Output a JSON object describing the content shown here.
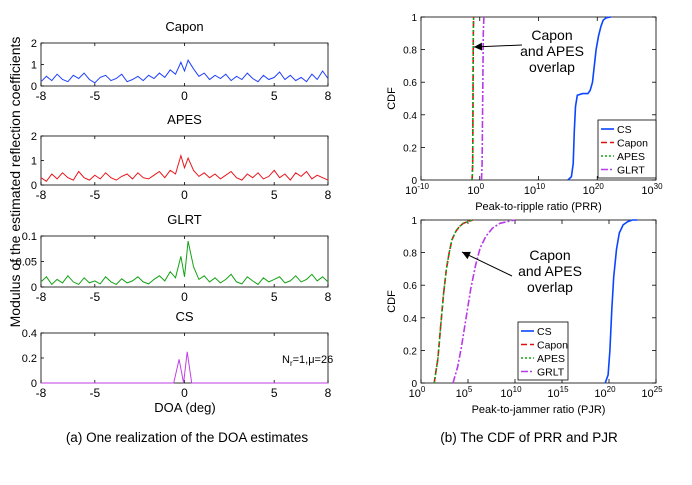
{
  "captions": {
    "left": "(a) One realization of  the DOA estimates",
    "right": "(b) The CDF of PRR and PJR"
  },
  "left_panel": {
    "shared_ylabel": "Modulus of the estimated reflection coefficients",
    "shared_xlabel": "DOA (deg)"
  },
  "colors": {
    "capon_blue": "#1f3fff",
    "apes_red": "#e8161b",
    "glrt_green": "#13a313",
    "cs_magenta": "#c13ee6",
    "cdf_cs": "#0a45ff",
    "cdf_capon": "#e01010",
    "cdf_apes": "#16a016",
    "cdf_glrt": "#b83ae8"
  },
  "chart_data": [
    {
      "type": "line",
      "title": "Capon",
      "xlim": [
        -8,
        8
      ],
      "ylim": [
        0,
        2
      ],
      "xticks": [
        -8,
        -5,
        0,
        5,
        8
      ],
      "yticks": [
        0,
        1,
        2
      ],
      "series": [
        {
          "name": "Capon",
          "color": "#1f3fff",
          "x": [
            -8,
            -7.7,
            -7.4,
            -7.1,
            -6.8,
            -6.5,
            -6.2,
            -5.9,
            -5.6,
            -5.3,
            -5,
            -4.7,
            -4.4,
            -4.1,
            -3.8,
            -3.5,
            -3.2,
            -2.9,
            -2.6,
            -2.3,
            -2,
            -1.7,
            -1.4,
            -1.1,
            -0.8,
            -0.5,
            -0.2,
            0,
            0.2,
            0.5,
            0.8,
            1.1,
            1.4,
            1.7,
            2,
            2.3,
            2.6,
            2.9,
            3.2,
            3.5,
            3.8,
            4.1,
            4.4,
            4.7,
            5,
            5.3,
            5.6,
            5.9,
            6.2,
            6.5,
            6.8,
            7.1,
            7.4,
            7.7,
            8
          ],
          "y": [
            0.2,
            0.45,
            0.25,
            0.55,
            0.3,
            0.2,
            0.5,
            0.35,
            0.6,
            0.3,
            0.15,
            0.4,
            0.5,
            0.25,
            0.35,
            0.55,
            0.2,
            0.3,
            0.45,
            0.25,
            0.5,
            0.35,
            0.6,
            0.4,
            0.75,
            0.55,
            1.1,
            0.7,
            1.2,
            0.8,
            0.45,
            0.6,
            0.3,
            0.5,
            0.35,
            0.55,
            0.25,
            0.45,
            0.3,
            0.6,
            0.35,
            0.2,
            0.5,
            0.3,
            0.4,
            0.65,
            0.3,
            0.5,
            0.25,
            0.4,
            0.2,
            0.55,
            0.3,
            0.7,
            0.35
          ]
        }
      ]
    },
    {
      "type": "line",
      "title": "APES",
      "xlim": [
        -8,
        8
      ],
      "ylim": [
        0,
        2
      ],
      "xticks": [
        -8,
        -5,
        0,
        5,
        8
      ],
      "yticks": [
        0,
        1,
        2
      ],
      "series": [
        {
          "name": "APES",
          "color": "#e8161b",
          "x": [
            -8,
            -7.7,
            -7.4,
            -7.1,
            -6.8,
            -6.5,
            -6.2,
            -5.9,
            -5.6,
            -5.3,
            -5,
            -4.7,
            -4.4,
            -4.1,
            -3.8,
            -3.5,
            -3.2,
            -2.9,
            -2.6,
            -2.3,
            -2,
            -1.7,
            -1.4,
            -1.1,
            -0.8,
            -0.5,
            -0.2,
            0,
            0.2,
            0.5,
            0.8,
            1.1,
            1.4,
            1.7,
            2,
            2.3,
            2.6,
            2.9,
            3.2,
            3.5,
            3.8,
            4.1,
            4.4,
            4.7,
            5,
            5.3,
            5.6,
            5.9,
            6.2,
            6.5,
            6.8,
            7.1,
            7.4,
            7.7,
            8
          ],
          "y": [
            0.3,
            0.15,
            0.45,
            0.25,
            0.5,
            0.3,
            0.2,
            0.55,
            0.3,
            0.2,
            0.4,
            0.25,
            0.5,
            0.3,
            0.2,
            0.35,
            0.45,
            0.25,
            0.5,
            0.3,
            0.25,
            0.4,
            0.55,
            0.3,
            0.6,
            0.45,
            1.2,
            0.7,
            1.1,
            0.6,
            0.35,
            0.5,
            0.3,
            0.45,
            0.25,
            0.4,
            0.55,
            0.3,
            0.2,
            0.45,
            0.3,
            0.5,
            0.25,
            0.35,
            0.6,
            0.3,
            0.45,
            0.2,
            0.5,
            0.35,
            0.55,
            0.25,
            0.4,
            0.3,
            0.2
          ]
        }
      ]
    },
    {
      "type": "line",
      "title": "GLRT",
      "xlim": [
        -8,
        8
      ],
      "ylim": [
        0,
        0.1
      ],
      "xticks": [
        -8,
        -5,
        0,
        5,
        8
      ],
      "yticks": [
        0,
        0.05,
        0.1
      ],
      "series": [
        {
          "name": "GLRT",
          "color": "#13a313",
          "x": [
            -8,
            -7.7,
            -7.4,
            -7.1,
            -6.8,
            -6.5,
            -6.2,
            -5.9,
            -5.6,
            -5.3,
            -5,
            -4.7,
            -4.4,
            -4.1,
            -3.8,
            -3.5,
            -3.2,
            -2.9,
            -2.6,
            -2.3,
            -2,
            -1.7,
            -1.4,
            -1.1,
            -0.8,
            -0.5,
            -0.2,
            0,
            0.2,
            0.5,
            0.8,
            1.1,
            1.4,
            1.7,
            2,
            2.3,
            2.6,
            2.9,
            3.2,
            3.5,
            3.8,
            4.1,
            4.4,
            4.7,
            5,
            5.3,
            5.6,
            5.9,
            6.2,
            6.5,
            6.8,
            7.1,
            7.4,
            7.7,
            8
          ],
          "y": [
            0.01,
            0.02,
            0.005,
            0.015,
            0.008,
            0.022,
            0.01,
            0.005,
            0.018,
            0.008,
            0.012,
            0.006,
            0.02,
            0.01,
            0.005,
            0.016,
            0.008,
            0.012,
            0.02,
            0.01,
            0.006,
            0.015,
            0.022,
            0.012,
            0.03,
            0.018,
            0.06,
            0.02,
            0.09,
            0.04,
            0.015,
            0.022,
            0.01,
            0.018,
            0.008,
            0.015,
            0.025,
            0.01,
            0.006,
            0.02,
            0.012,
            0.005,
            0.018,
            0.01,
            0.015,
            0.02,
            0.008,
            0.012,
            0.022,
            0.01,
            0.015,
            0.025,
            0.012,
            0.02,
            0.01
          ]
        }
      ]
    },
    {
      "type": "line",
      "title": "CS",
      "annotation": "N",
      "annotation_sub": "r",
      "annotation_rest": "=1,μ=26",
      "xlim": [
        -8,
        8
      ],
      "ylim": [
        0,
        0.4
      ],
      "xticks": [
        -8,
        -5,
        0,
        5,
        8
      ],
      "yticks": [
        0,
        0.2,
        0.4
      ],
      "series": [
        {
          "name": "CS",
          "color": "#c13ee6",
          "x": [
            -8,
            -0.6,
            -0.3,
            -0.05,
            0.15,
            0.4,
            0.6,
            8
          ],
          "y": [
            0,
            0,
            0.19,
            0,
            0.25,
            0,
            0,
            0
          ]
        }
      ]
    },
    {
      "type": "line",
      "subtype": "cdf",
      "xscale": "log",
      "xlim_exp": [
        -10,
        30
      ],
      "ylim": [
        0,
        1
      ],
      "xticks_exp": [
        -10,
        0,
        10,
        20,
        30
      ],
      "yticks": [
        0,
        0.2,
        0.4,
        0.6,
        0.8,
        1
      ],
      "xlabel": "Peak-to-ripple ratio (PRR)",
      "ylabel": "CDF",
      "legend": "bottom-right",
      "annotation": "Capon\nand APES\noverlap",
      "series": [
        {
          "name": "CS",
          "color": "#0a45ff",
          "dash": "",
          "x": [
            15,
            15.6,
            15.9,
            16.1,
            16.3,
            16.6,
            17.5,
            18.4,
            18.8,
            19.2,
            19.5,
            19.8,
            20.2,
            20.6,
            21,
            21.5,
            22.3
          ],
          "y": [
            0,
            0.02,
            0.1,
            0.3,
            0.45,
            0.52,
            0.53,
            0.53,
            0.55,
            0.6,
            0.7,
            0.8,
            0.88,
            0.94,
            0.98,
            0.995,
            1
          ]
        },
        {
          "name": "Capon",
          "color": "#e01010",
          "dash": "6,3",
          "x": [
            -1.3,
            -1.2,
            -1.15,
            -1.1,
            -1.05
          ],
          "y": [
            0,
            0.1,
            0.5,
            0.9,
            1
          ]
        },
        {
          "name": "APES",
          "color": "#16a016",
          "dash": "2,2",
          "x": [
            -1.3,
            -1.2,
            -1.15,
            -1.1,
            -1.05
          ],
          "y": [
            0,
            0.1,
            0.5,
            0.9,
            1
          ]
        },
        {
          "name": "GLRT",
          "color": "#b83ae8",
          "dash": "7,2,2,2",
          "x": [
            0.3,
            0.4,
            0.5,
            0.6,
            0.7
          ],
          "y": [
            0,
            0.1,
            0.5,
            0.9,
            1
          ]
        }
      ]
    },
    {
      "type": "line",
      "subtype": "cdf",
      "xscale": "log",
      "xlim_exp": [
        0,
        25
      ],
      "ylim": [
        0,
        1
      ],
      "xticks_exp": [
        0,
        5,
        10,
        15,
        20,
        25
      ],
      "yticks": [
        0,
        0.2,
        0.4,
        0.6,
        0.8,
        1
      ],
      "xlabel": "Peak-to-jammer ratio (PJR)",
      "ylabel": "CDF",
      "legend": "bottom-left",
      "annotation": "Capon\nand APES\noverlap",
      "series": [
        {
          "name": "CS",
          "color": "#0a45ff",
          "dash": "",
          "x": [
            19.6,
            19.9,
            20.1,
            20.3,
            20.5,
            20.8,
            21.1,
            21.5,
            22,
            22.5,
            23
          ],
          "y": [
            0,
            0.05,
            0.2,
            0.45,
            0.65,
            0.82,
            0.92,
            0.97,
            0.99,
            1,
            1
          ]
        },
        {
          "name": "Capon",
          "color": "#e01010",
          "dash": "6,3",
          "x": [
            1.4,
            1.8,
            2.1,
            2.4,
            2.7,
            3.0,
            3.3,
            3.7,
            4.1,
            4.5,
            5.0,
            5.5
          ],
          "y": [
            0,
            0.15,
            0.35,
            0.55,
            0.7,
            0.8,
            0.88,
            0.93,
            0.96,
            0.98,
            0.99,
            1
          ]
        },
        {
          "name": "APES",
          "color": "#16a016",
          "dash": "2,2",
          "x": [
            1.4,
            1.8,
            2.1,
            2.4,
            2.7,
            3.0,
            3.3,
            3.7,
            4.1,
            4.5,
            5.0,
            5.5
          ],
          "y": [
            0,
            0.15,
            0.35,
            0.55,
            0.7,
            0.8,
            0.88,
            0.93,
            0.96,
            0.98,
            0.99,
            1
          ]
        },
        {
          "name": "GRLT",
          "color": "#b83ae8",
          "dash": "7,2,2,2",
          "x": [
            3.4,
            3.9,
            4.3,
            4.8,
            5.3,
            5.8,
            6.3,
            6.9,
            7.6,
            8.4,
            9.2,
            10
          ],
          "y": [
            0,
            0.1,
            0.22,
            0.4,
            0.58,
            0.72,
            0.83,
            0.9,
            0.95,
            0.98,
            0.99,
            1
          ]
        }
      ]
    }
  ]
}
